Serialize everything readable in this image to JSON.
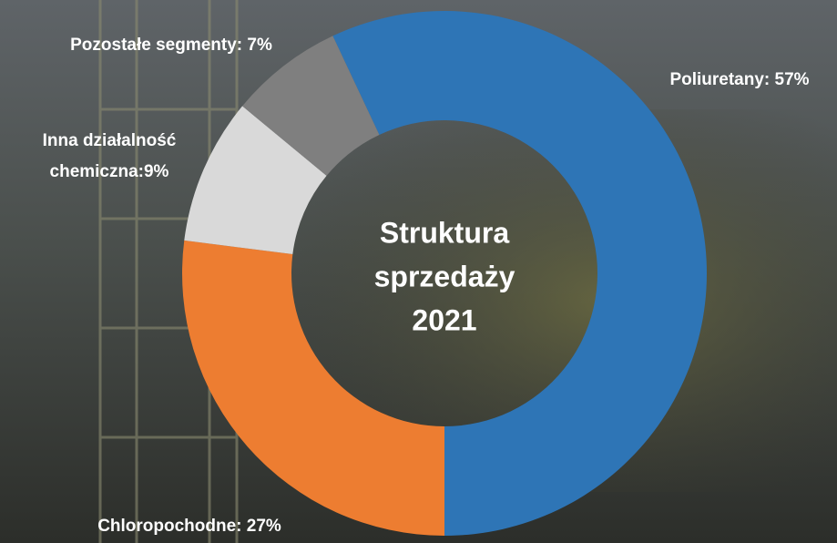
{
  "chart_data": {
    "type": "donut",
    "title": [
      "Struktura",
      "sprzedaży",
      "2021"
    ],
    "values": [
      57,
      27,
      9,
      7
    ],
    "value_labels": [
      "Poliuretany: 57%",
      "Chloropochodne: 27%",
      [
        "Inna działalność",
        "chemiczna:9%"
      ],
      "Pozostałe segmenty: 7%"
    ],
    "colors": [
      "#2e75b6",
      "#ed7d31",
      "#d9d9d9",
      "#7f7f7f"
    ]
  }
}
